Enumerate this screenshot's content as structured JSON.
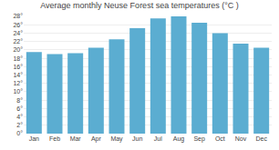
{
  "chart_data": {
    "type": "bar",
    "title": "Average monthly Neuse Forest sea temperatures (°C )",
    "categories": [
      "Jan",
      "Feb",
      "Mar",
      "Apr",
      "May",
      "Jun",
      "Jul",
      "Aug",
      "Sep",
      "Oct",
      "Nov",
      "Dec"
    ],
    "values": [
      19.5,
      19.0,
      19.2,
      20.5,
      22.5,
      25.2,
      27.5,
      28.0,
      26.5,
      24.0,
      21.5,
      20.5
    ],
    "color": "#5badd1",
    "ylim": [
      0,
      28
    ],
    "yticks": [
      {
        "value": 0,
        "label": "0°"
      },
      {
        "value": 2,
        "label": "2°"
      },
      {
        "value": 4,
        "label": "4°"
      },
      {
        "value": 6,
        "label": "6°"
      },
      {
        "value": 8,
        "label": "8°"
      },
      {
        "value": 10,
        "label": "10°"
      },
      {
        "value": 12,
        "label": "12°"
      },
      {
        "value": 14,
        "label": "14°"
      },
      {
        "value": 16,
        "label": "16°"
      },
      {
        "value": 18,
        "label": "18°"
      },
      {
        "value": 20,
        "label": "20°"
      },
      {
        "value": 22,
        "label": "22°"
      },
      {
        "value": 24,
        "label": "24°"
      },
      {
        "value": 26,
        "label": "26°"
      },
      {
        "value": 28,
        "label": "28°"
      }
    ],
    "grid": true
  }
}
